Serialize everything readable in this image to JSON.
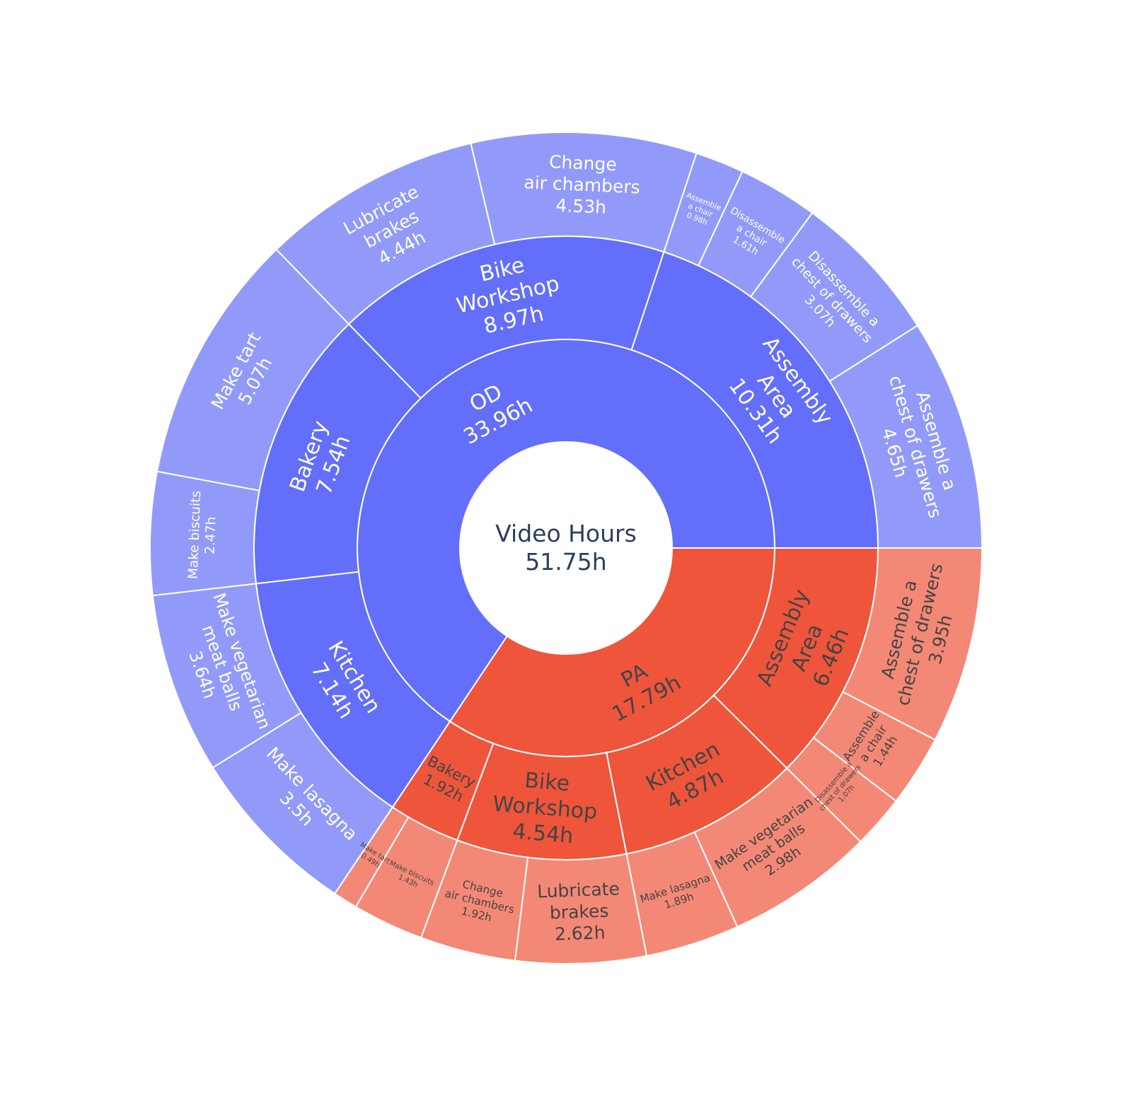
{
  "colors": {
    "od_ring1": "#636EFA",
    "od_ring2": "#636EFA",
    "od_leaf": "#929AF9",
    "pa_ring1": "#EF553B",
    "pa_ring2": "#EF553B",
    "pa_leaf": "#F48876",
    "center_text": "#2a3f5f",
    "light_text": "#ffffff",
    "dark_text": "#444444"
  },
  "chart_data": {
    "type": "sunburst",
    "root": {
      "label": "Video Hours",
      "value_text": "51.75h",
      "value": 51.75
    },
    "groups": [
      {
        "label": "OD",
        "value_text": "33.96h",
        "value": 33.96,
        "children": [
          {
            "label": "Assembly Area",
            "lines": [
              "Assembly",
              "Area"
            ],
            "value_text": "10.31h",
            "value": 10.31,
            "children": [
              {
                "label": "Assemble a chest of drawers",
                "lines": [
                  "Assemble a",
                  "chest of drawers"
                ],
                "value_text": "4.65h",
                "value": 4.65
              },
              {
                "label": "Disassemble a chest of drawers",
                "lines": [
                  "Disassemble a",
                  "chest of drawers"
                ],
                "value_text": "3.07h",
                "value": 3.07
              },
              {
                "label": "Disassemble a chair",
                "lines": [
                  "Disassemble",
                  "a chair"
                ],
                "value_text": "1.61h",
                "value": 1.61
              },
              {
                "label": "Assemble a chair",
                "lines": [
                  "Assemble",
                  "a chair"
                ],
                "value_text": "0.98h",
                "value": 0.98
              }
            ]
          },
          {
            "label": "Bike Workshop",
            "lines": [
              "Bike",
              "Workshop"
            ],
            "value_text": "8.97h",
            "value": 8.97,
            "children": [
              {
                "label": "Change air chambers",
                "lines": [
                  "Change",
                  "air chambers"
                ],
                "value_text": "4.53h",
                "value": 4.53
              },
              {
                "label": "Lubricate brakes",
                "lines": [
                  "Lubricate",
                  "brakes"
                ],
                "value_text": "4.44h",
                "value": 4.44
              }
            ]
          },
          {
            "label": "Bakery",
            "lines": [
              "Bakery"
            ],
            "value_text": "7.54h",
            "value": 7.54,
            "children": [
              {
                "label": "Make tart",
                "lines": [
                  "Make tart"
                ],
                "value_text": "5.07h",
                "value": 5.07
              },
              {
                "label": "Make biscuits",
                "lines": [
                  "Make biscuits"
                ],
                "value_text": "2.47h",
                "value": 2.47
              }
            ]
          },
          {
            "label": "Kitchen",
            "lines": [
              "Kitchen"
            ],
            "value_text": "7.14h",
            "value": 7.14,
            "children": [
              {
                "label": "Make vegetarian meat balls",
                "lines": [
                  "Make vegetarian",
                  "meat balls"
                ],
                "value_text": "3.64h",
                "value": 3.64
              },
              {
                "label": "Make lasagna",
                "lines": [
                  "Make lasagna"
                ],
                "value_text": "3.5h",
                "value": 3.5
              }
            ]
          }
        ]
      },
      {
        "label": "PA",
        "value_text": "17.79h",
        "value": 17.79,
        "children": [
          {
            "label": "Assembly Area",
            "lines": [
              "Assembly",
              "Area"
            ],
            "value_text": "6.46h",
            "value": 6.46,
            "children": [
              {
                "label": "Assemble a chest of drawers",
                "lines": [
                  "Assemble a",
                  "chest of drawers"
                ],
                "value_text": "3.95h",
                "value": 3.95
              },
              {
                "label": "Assemble a chair",
                "lines": [
                  "Assemble",
                  "a chair"
                ],
                "value_text": "1.44h",
                "value": 1.44
              },
              {
                "label": "Disassemble a chest of drawers",
                "lines": [
                  "Disassemble a",
                  "chest of drawers"
                ],
                "value_text": "1.07h",
                "value": 1.07
              }
            ]
          },
          {
            "label": "Kitchen",
            "lines": [
              "Kitchen"
            ],
            "value_text": "4.87h",
            "value": 4.87,
            "children": [
              {
                "label": "Make vegetarian meat balls",
                "lines": [
                  "Make vegetarian",
                  "meat balls"
                ],
                "value_text": "2.98h",
                "value": 2.98
              },
              {
                "label": "Make lasagna",
                "lines": [
                  "Make lasagna"
                ],
                "value_text": "1.89h",
                "value": 1.89
              }
            ]
          },
          {
            "label": "Bike Workshop",
            "lines": [
              "Bike",
              "Workshop"
            ],
            "value_text": "4.54h",
            "value": 4.54,
            "children": [
              {
                "label": "Lubricate brakes",
                "lines": [
                  "Lubricate",
                  "brakes"
                ],
                "value_text": "2.62h",
                "value": 2.62
              },
              {
                "label": "Change air chambers",
                "lines": [
                  "Change",
                  "air chambers"
                ],
                "value_text": "1.92h",
                "value": 1.92
              }
            ]
          },
          {
            "label": "Bakery",
            "lines": [
              "Bakery"
            ],
            "value_text": "1.92h",
            "value": 1.92,
            "children": [
              {
                "label": "Make biscuits",
                "lines": [
                  "Make biscuits"
                ],
                "value_text": "1.43h",
                "value": 1.43
              },
              {
                "label": "Make tart",
                "lines": [
                  "Make tart"
                ],
                "value_text": "0.49h",
                "value": 0.49
              }
            ]
          }
        ]
      }
    ]
  }
}
